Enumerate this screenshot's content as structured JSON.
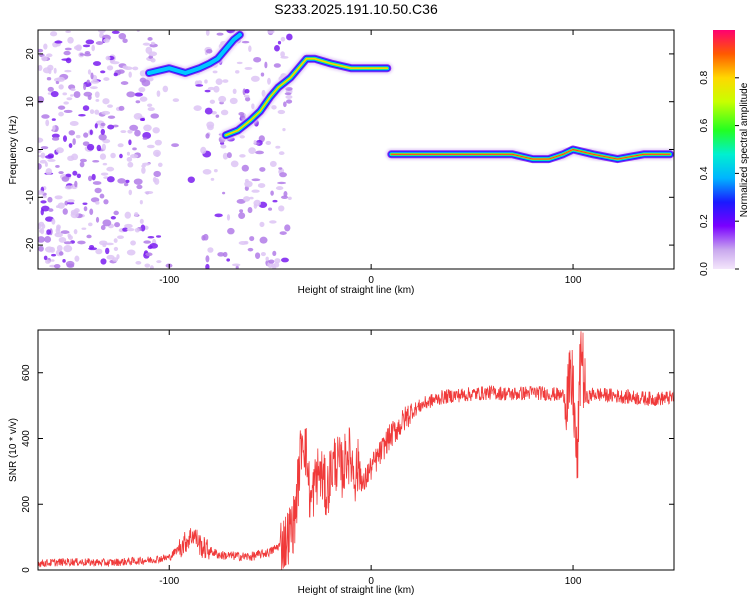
{
  "figure_title": "S233.2025.191.10.50.C36",
  "chart_data": [
    {
      "type": "heatmap",
      "title": "",
      "xlabel": "Height of straight line (km)",
      "ylabel": "Frequency (Hz)",
      "xlim": [
        -165,
        150
      ],
      "ylim": [
        -25,
        25
      ],
      "xticks": [
        -100,
        0,
        100
      ],
      "yticks": [
        -20,
        -10,
        0,
        10,
        20
      ],
      "grid": false,
      "colorbar": {
        "label": "Normalized spectral amplitude",
        "ticks": [
          0.0,
          0.2,
          0.4,
          0.6,
          0.8
        ],
        "range": [
          0,
          1
        ]
      },
      "ridges": [
        {
          "name": "",
          "points": [
            [
              -110,
              16
            ],
            [
              -100,
              17
            ],
            [
              -92,
              16
            ],
            [
              -85,
              17
            ],
            [
              -80,
              18
            ],
            [
              -76,
              19
            ],
            [
              -72,
              21
            ],
            [
              -68,
              23
            ],
            [
              -65,
              24
            ]
          ]
        },
        {
          "name": "",
          "points": [
            [
              -72,
              3
            ],
            [
              -66,
              4
            ],
            [
              -60,
              6
            ],
            [
              -55,
              8
            ],
            [
              -50,
              11
            ],
            [
              -46,
              13
            ],
            [
              -40,
              15
            ],
            [
              -36,
              17
            ],
            [
              -32,
              19
            ],
            [
              -28,
              19
            ],
            [
              -20,
              18
            ],
            [
              -10,
              17
            ],
            [
              0,
              17
            ],
            [
              8,
              17
            ]
          ]
        },
        {
          "name": "",
          "points": [
            [
              10,
              -1
            ],
            [
              30,
              -1
            ],
            [
              50,
              -1
            ],
            [
              70,
              -1
            ],
            [
              80,
              -2
            ],
            [
              88,
              -2
            ],
            [
              95,
              -1
            ],
            [
              100,
              0
            ],
            [
              110,
              -1
            ],
            [
              122,
              -2
            ],
            [
              135,
              -1
            ],
            [
              148,
              -1
            ]
          ]
        }
      ],
      "noise_region_x": [
        -165,
        -40
      ]
    },
    {
      "type": "line",
      "title": "",
      "xlabel": "Height of straight line (km)",
      "ylabel": "SNR (10 * v/v)",
      "xlim": [
        -165,
        150
      ],
      "ylim": [
        0,
        730
      ],
      "xticks": [
        -100,
        0,
        100
      ],
      "yticks": [
        0,
        200,
        400,
        600
      ],
      "grid": false,
      "series": [
        {
          "name": "",
          "color": "#f03a3a",
          "x": [
            -165,
            -150,
            -130,
            -110,
            -100,
            -92,
            -88,
            -84,
            -75,
            -60,
            -50,
            -42,
            -38,
            -36,
            -34,
            -32,
            -30,
            -28,
            -26,
            -24,
            -22,
            -20,
            -18,
            -16,
            -14,
            -12,
            -10,
            -8,
            -6,
            -4,
            -2,
            0,
            2,
            4,
            6,
            8,
            10,
            12,
            15,
            18,
            22,
            26,
            30,
            35,
            40,
            50,
            60,
            70,
            80,
            90,
            96,
            100,
            102,
            104,
            106,
            110,
            120,
            130,
            140,
            150
          ],
          "y": [
            20,
            25,
            22,
            30,
            38,
            85,
            110,
            70,
            45,
            40,
            55,
            90,
            150,
            280,
            420,
            350,
            200,
            260,
            300,
            280,
            230,
            300,
            330,
            320,
            300,
            360,
            340,
            290,
            320,
            250,
            290,
            310,
            330,
            350,
            370,
            395,
            410,
            425,
            445,
            470,
            490,
            505,
            515,
            525,
            530,
            535,
            540,
            535,
            540,
            535,
            530,
            560,
            300,
            700,
            520,
            535,
            530,
            525,
            520,
            525
          ]
        }
      ]
    }
  ]
}
